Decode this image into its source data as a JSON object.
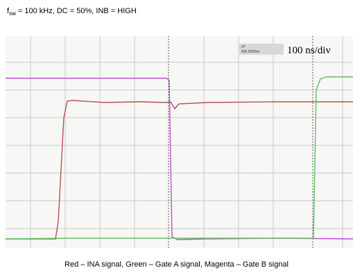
{
  "header": {
    "symbol": "f",
    "subscript": "sw",
    "rest": " = 100 kHz, DC = 50%, INB = HIGH"
  },
  "scope": {
    "cursor_name": "dT",
    "cursor_value": "430.0000ns",
    "timebase": "100 ns/div"
  },
  "caption": "Red – INA signal, Green – Gate A signal, Magenta – Gate B signal"
}
